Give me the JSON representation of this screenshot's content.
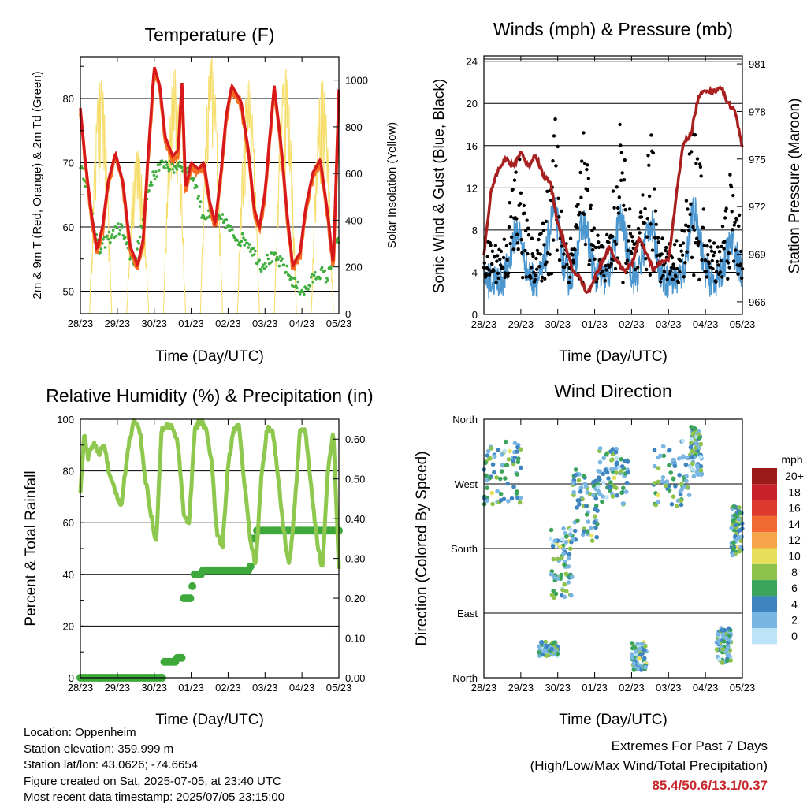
{
  "charts": {
    "temperature": {
      "title": "Temperature (F)",
      "ylabel_left": "2m & 9m T (Red, Orange) & 2m Td (Green)",
      "ylabel_right": "Solar Insolation (Yellow)",
      "xlabel": "Time (Day/UTC)"
    },
    "winds": {
      "title": "Winds (mph) & Pressure (mb)",
      "ylabel_left": "Sonic Wind & Gust (Blue, Black)",
      "ylabel_right": "Station Pressure (Maroon)",
      "xlabel": "Time (Day/UTC)"
    },
    "humidity": {
      "title": "Relative Humidity (%) & Precipitation (in)",
      "ylabel_left": "Percent & Total Rainfall",
      "xlabel": "Time (Day/UTC)"
    },
    "direction": {
      "title": "Wind Direction",
      "ylabel_left": "Direction (Colored By Speed)",
      "xlabel": "Time (Day/UTC)",
      "legend_title": "mph"
    }
  },
  "info": {
    "location": "Location: Oppenheim",
    "elevation": "Station elevation: 359.999 m",
    "latlon": "Station lat/lon: 43.0626; -74.6654",
    "created": "Figure created on Sat, 2025-07-05, at 23:40 UTC",
    "latest": "Most recent data timestamp: 2025/07/05 23:15:00"
  },
  "extremes": {
    "title": "Extremes For Past 7 Days",
    "subtitle": "(High/Low/Max Wind/Total Precipitation)",
    "values": "85.4/50.6/13.1/0.37"
  },
  "chart_data": [
    {
      "id": "temperature",
      "type": "line",
      "x_ticks": [
        "28/23",
        "29/23",
        "30/23",
        "01/23",
        "02/23",
        "03/23",
        "04/23",
        "05/23"
      ],
      "x_range_days": [
        0,
        7
      ],
      "ylim": [
        46.5,
        86.5
      ],
      "y_ticks": [
        50,
        60,
        70,
        80
      ],
      "y2lim": [
        0,
        1100
      ],
      "y2_ticks": [
        0,
        200,
        400,
        600,
        800,
        1000
      ],
      "colors": {
        "t2m": "#d7191c",
        "t9m": "#f46d21",
        "td": "#3fae3f",
        "solar": "#f6de6e"
      },
      "series": [
        {
          "name": "2m T",
          "x": [
            0,
            0.12,
            0.3,
            0.45,
            0.6,
            0.75,
            0.95,
            1.15,
            1.35,
            1.55,
            1.7,
            1.82,
            2.0,
            2.15,
            2.3,
            2.5,
            2.65,
            2.75,
            2.85,
            3.0,
            3.2,
            3.35,
            3.5,
            3.65,
            3.8,
            3.95,
            4.1,
            4.35,
            4.55,
            4.7,
            4.85,
            5.0,
            5.25,
            5.45,
            5.6,
            5.75,
            5.95,
            6.1,
            6.3,
            6.5,
            6.7,
            6.85,
            7.0
          ],
          "values": [
            78.5,
            71,
            62,
            56.5,
            60,
            67,
            71.5,
            67,
            57,
            54,
            58,
            70,
            85,
            82,
            74,
            71,
            72,
            83,
            66,
            70,
            69,
            70,
            64,
            60.5,
            68,
            77.5,
            82,
            79.5,
            72,
            63,
            60,
            65.5,
            82,
            72,
            62,
            54,
            56,
            63,
            68.5,
            70.5,
            62,
            54,
            81.4
          ]
        },
        {
          "name": "2m Td",
          "x": [
            0,
            0.1,
            0.3,
            0.5,
            0.7,
            0.9,
            1.1,
            1.3,
            1.5,
            1.7,
            1.9,
            2.1,
            2.3,
            2.5,
            2.7,
            2.9,
            3.1,
            3.3,
            3.5,
            3.7,
            3.9,
            4.1,
            4.3,
            4.5,
            4.7,
            4.9,
            5.1,
            5.3,
            5.5,
            5.7,
            5.9,
            6.1,
            6.3,
            6.5,
            6.7,
            6.9,
            7.0
          ],
          "values": [
            70,
            68,
            63,
            56,
            58,
            59,
            60,
            56,
            54.5,
            62,
            67,
            69,
            70,
            69,
            70,
            69,
            67,
            62,
            61.5,
            61,
            61,
            59,
            58,
            58,
            56,
            54,
            55,
            55,
            54,
            52,
            50.5,
            50,
            52,
            53,
            52,
            57,
            58
          ]
        },
        {
          "name": "Solar",
          "axis": "y2",
          "peaks_x": [
            0.55,
            1.55,
            2.55,
            3.55,
            4.55,
            5.55,
            6.55
          ],
          "peaks": [
            1000,
            700,
            1050,
            1100,
            1000,
            1050,
            1000
          ]
        }
      ]
    },
    {
      "id": "winds",
      "type": "line",
      "x_ticks": [
        "28/23",
        "29/23",
        "30/23",
        "01/23",
        "02/23",
        "03/23",
        "04/23",
        "05/23"
      ],
      "x_range_days": [
        0,
        7
      ],
      "ylim": [
        0,
        24.5
      ],
      "y_ticks": [
        0,
        4,
        8,
        12,
        16,
        20,
        24
      ],
      "y2lim": [
        965.2,
        981.5
      ],
      "y2_ticks": [
        966,
        969,
        972,
        975,
        978,
        981
      ],
      "colors": {
        "wind": "#4b96cf",
        "gust": "#000000",
        "pressure": "#a81f1f"
      },
      "series": [
        {
          "name": "Pressure",
          "axis": "y2",
          "x": [
            0,
            0.2,
            0.4,
            0.6,
            0.8,
            1.0,
            1.2,
            1.4,
            1.6,
            1.8,
            2.0,
            2.2,
            2.4,
            2.6,
            2.8,
            3.0,
            3.2,
            3.4,
            3.6,
            3.8,
            4.0,
            4.2,
            4.4,
            4.6,
            4.8,
            5.0,
            5.2,
            5.4,
            5.6,
            5.8,
            6.0,
            6.2,
            6.4,
            6.6,
            6.8,
            7.0
          ],
          "values": [
            969,
            973,
            974.5,
            975,
            974.5,
            975.5,
            974.5,
            975.3,
            974,
            973.5,
            971,
            969.5,
            968,
            967.5,
            966.5,
            967.5,
            968.5,
            969.5,
            968.5,
            968,
            968.3,
            970,
            969,
            968,
            968.5,
            968.6,
            972.5,
            976,
            976.5,
            978.8,
            979.4,
            979.2,
            979.6,
            978.6,
            978,
            975.8
          ]
        },
        {
          "name": "Gust peaks",
          "x": [
            0.9,
            1.9,
            2.7,
            3.7,
            4.5,
            5.7,
            6.7
          ],
          "values": [
            17.5,
            22,
            19,
            20,
            19,
            22,
            14
          ]
        }
      ]
    },
    {
      "id": "humidity",
      "type": "line",
      "x_ticks": [
        "28/23",
        "29/23",
        "30/23",
        "01/23",
        "02/23",
        "03/23",
        "04/23",
        "05/23"
      ],
      "x_range_days": [
        0,
        7
      ],
      "ylim": [
        0,
        100
      ],
      "y_ticks": [
        0,
        20,
        40,
        60,
        80,
        100
      ],
      "y2lim": [
        0,
        0.65
      ],
      "y2_ticks": [
        "0.00",
        "0.10",
        "0.20",
        "0.30",
        "0.40",
        "0.50",
        "0.60"
      ],
      "colors": {
        "rh": "#8fc84f",
        "precip": "#3ea93a"
      },
      "series": [
        {
          "name": "RH",
          "x": [
            0,
            0.1,
            0.2,
            0.35,
            0.5,
            0.65,
            0.8,
            0.95,
            1.1,
            1.3,
            1.45,
            1.6,
            1.75,
            1.9,
            2.05,
            2.2,
            2.35,
            2.5,
            2.65,
            2.8,
            2.95,
            3.1,
            3.25,
            3.4,
            3.55,
            3.7,
            3.85,
            4.0,
            4.15,
            4.3,
            4.45,
            4.6,
            4.75,
            4.9,
            5.05,
            5.2,
            5.35,
            5.5,
            5.65,
            5.8,
            5.95,
            6.1,
            6.25,
            6.4,
            6.55,
            6.7,
            6.85,
            7.0
          ],
          "values": [
            72,
            94,
            85,
            91,
            86,
            91,
            77,
            72,
            66,
            90,
            99,
            97,
            78,
            64,
            52,
            96,
            97,
            97,
            90,
            63,
            60,
            97,
            99,
            97,
            84,
            55,
            51,
            82,
            96,
            97,
            74,
            54,
            43,
            78,
            96,
            96,
            78,
            58,
            43,
            65,
            97,
            95,
            74,
            54,
            41,
            80,
            95,
            42
          ]
        },
        {
          "name": "Precip",
          "axis": "y2",
          "x": [
            0,
            2.2,
            2.25,
            2.55,
            2.6,
            2.7,
            2.75,
            3.0,
            3.05,
            3.3,
            4.6,
            4.65,
            4.75,
            7.0
          ],
          "values": [
            0,
            0,
            0.04,
            0.04,
            0.05,
            0.05,
            0.2,
            0.23,
            0.26,
            0.27,
            0.28,
            0.35,
            0.37,
            0.37
          ]
        }
      ]
    },
    {
      "id": "direction",
      "type": "scatter",
      "x_ticks": [
        "28/23",
        "29/23",
        "30/23",
        "01/23",
        "02/23",
        "03/23",
        "04/23",
        "05/23"
      ],
      "x_range_days": [
        0,
        7
      ],
      "y_ticks": [
        "North",
        "East",
        "South",
        "West",
        "North"
      ],
      "y_tick_values": [
        0,
        90,
        180,
        270,
        360
      ],
      "ylim": [
        0,
        360
      ],
      "legend": {
        "labels": [
          "20+",
          "18",
          "16",
          "14",
          "12",
          "10",
          "8",
          "6",
          "4",
          "2",
          "0"
        ],
        "colors": [
          "#9b1a1a",
          "#c8222a",
          "#de3a2e",
          "#f06a32",
          "#f6a54a",
          "#e8e05a",
          "#8dc24d",
          "#3ba35a",
          "#3d84c0",
          "#7ab6e2",
          "#bde3f6"
        ]
      },
      "clusters": [
        {
          "x": [
            0,
            1
          ],
          "dir": [
            240,
            330
          ]
        },
        {
          "x": [
            1.5,
            2.0
          ],
          "dir": [
            30,
            50
          ]
        },
        {
          "x": [
            1.8,
            2.4
          ],
          "dir": [
            110,
            210
          ]
        },
        {
          "x": [
            2.4,
            3.1
          ],
          "dir": [
            190,
            290
          ]
        },
        {
          "x": [
            3.1,
            3.9
          ],
          "dir": [
            240,
            320
          ]
        },
        {
          "x": [
            4.0,
            4.4
          ],
          "dir": [
            10,
            50
          ]
        },
        {
          "x": [
            4.6,
            5.6
          ],
          "dir": [
            230,
            330
          ]
        },
        {
          "x": [
            5.6,
            5.9
          ],
          "dir": [
            280,
            350
          ]
        },
        {
          "x": [
            6.3,
            6.7
          ],
          "dir": [
            20,
            70
          ]
        },
        {
          "x": [
            6.7,
            7.0
          ],
          "dir": [
            170,
            240
          ]
        }
      ]
    }
  ]
}
